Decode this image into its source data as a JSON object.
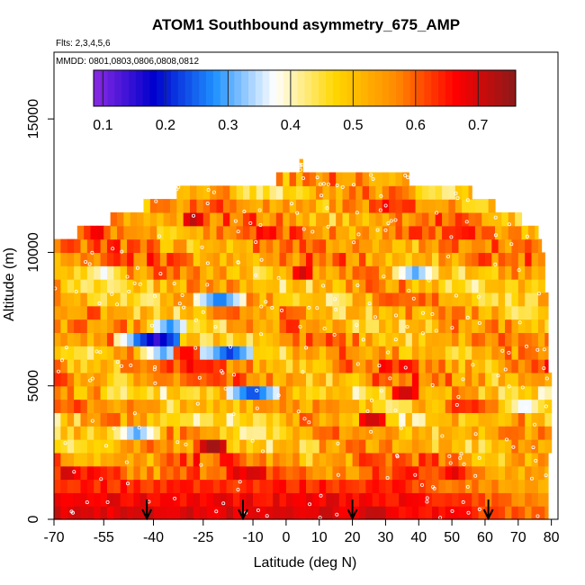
{
  "chart_data": {
    "type": "heatmap",
    "title": "ATOM1 Southbound asymmetry_675_AMP",
    "flights_text": "Flts: 2,3,4,5,6",
    "dates_text": "MMDD: 0801,0803,0806,0808,0812",
    "xlabel": "Latitude (deg N)",
    "ylabel": "Altitude (m)",
    "xlim": [
      -70,
      82
    ],
    "ylim": [
      0,
      17500
    ],
    "x_ticks": [
      -70,
      -55,
      -40,
      -25,
      -10,
      0,
      10,
      20,
      30,
      40,
      50,
      60,
      70,
      80
    ],
    "x_tick_labels": [
      "-70",
      "-55",
      "-40",
      "-25",
      "-10",
      "0",
      "10",
      "20",
      "30",
      "40",
      "50",
      "60",
      "70",
      "80"
    ],
    "y_ticks": [
      0,
      5000,
      10000,
      15000
    ],
    "y_tick_labels": [
      "0",
      "5000",
      "10000",
      "15000"
    ],
    "colorbar": {
      "range": [
        0.085,
        0.76
      ],
      "ticks": [
        0.1,
        0.2,
        0.3,
        0.4,
        0.5,
        0.6,
        0.7
      ],
      "tick_labels": [
        "0.1",
        "0.2",
        "0.3",
        "0.4",
        "0.5",
        "0.6",
        "0.7"
      ],
      "colors": [
        "#8a2be2",
        "#0000cd",
        "#1e90ff",
        "#ffffff",
        "#ffd700",
        "#ff8c00",
        "#ff0000",
        "#8b1a1a"
      ]
    },
    "altitude_bins": [
      250,
      750,
      1250,
      1750,
      2250,
      2750,
      3250,
      3750,
      4250,
      4750,
      5250,
      5750,
      6250,
      6750,
      7250,
      7750,
      8250,
      8750,
      9250,
      9750,
      10250,
      10750,
      11250,
      11750,
      12250,
      12750,
      13250
    ],
    "latitude_range_by_altitude_bin": [
      [
        -70,
        79
      ],
      [
        -70,
        79
      ],
      [
        -70,
        79
      ],
      [
        -70,
        79
      ],
      [
        -70,
        79
      ],
      [
        -70,
        80
      ],
      [
        -70,
        80
      ],
      [
        -70,
        80
      ],
      [
        -70,
        80
      ],
      [
        -70,
        80
      ],
      [
        -70,
        80
      ],
      [
        -70,
        79
      ],
      [
        -70,
        79
      ],
      [
        -70,
        79
      ],
      [
        -70,
        79
      ],
      [
        -70,
        79
      ],
      [
        -70,
        79
      ],
      [
        -70,
        78
      ],
      [
        -70,
        78
      ],
      [
        -70,
        78
      ],
      [
        -70,
        77
      ],
      [
        -63,
        76
      ],
      [
        -53,
        71
      ],
      [
        -43,
        63
      ],
      [
        -33,
        56
      ],
      [
        -3,
        37
      ],
      [
        4,
        5
      ]
    ],
    "asymmetry_profile_by_altitude_bin": [
      0.69,
      0.67,
      0.64,
      0.6,
      0.56,
      0.52,
      0.52,
      0.5,
      0.53,
      0.5,
      0.55,
      0.56,
      0.52,
      0.53,
      0.52,
      0.52,
      0.52,
      0.51,
      0.52,
      0.55,
      0.55,
      0.57,
      0.55,
      0.55,
      0.52,
      0.54,
      0.52
    ],
    "low_value_patches": [
      {
        "lat": -17,
        "alt": 6300,
        "value": 0.2
      },
      {
        "lat": -28,
        "alt": 6300,
        "value": 0.27
      },
      {
        "lat": -37,
        "alt": 6300,
        "value": 0.28
      },
      {
        "lat": -45,
        "alt": 6700,
        "value": 0.27
      },
      {
        "lat": -35,
        "alt": 7100,
        "value": 0.22
      },
      {
        "lat": -39,
        "alt": 6700,
        "value": 0.12
      },
      {
        "lat": -10,
        "alt": 4750,
        "value": 0.22
      },
      {
        "lat": -20,
        "alt": 8250,
        "value": 0.25
      },
      {
        "lat": 39,
        "alt": 9250,
        "value": 0.3
      },
      {
        "lat": -55,
        "alt": 9250,
        "value": 0.37
      },
      {
        "lat": 72,
        "alt": 4250,
        "value": 0.35
      },
      {
        "lat": -45,
        "alt": 3250,
        "value": 0.3
      }
    ],
    "high_value_patches": [
      {
        "lat": -28,
        "alt": 11250,
        "value": 0.72
      },
      {
        "lat": 5,
        "alt": 9250,
        "value": 0.7
      },
      {
        "lat": -22,
        "alt": 2750,
        "value": 0.76
      },
      {
        "lat": 26,
        "alt": 3750,
        "value": 0.72
      },
      {
        "lat": 36,
        "alt": 4750,
        "value": 0.72
      },
      {
        "lat": -30,
        "alt": 6250,
        "value": 0.68
      }
    ],
    "arrow_latitudes": [
      -42,
      -13,
      20,
      61
    ]
  }
}
